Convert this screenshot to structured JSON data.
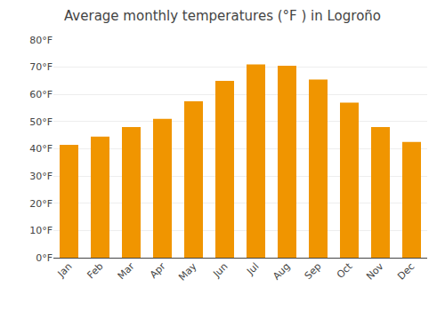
{
  "chart_data": {
    "type": "bar",
    "title": "Average monthly temperatures (°F ) in Logroño",
    "categories": [
      "Jan",
      "Feb",
      "Mar",
      "Apr",
      "May",
      "Jun",
      "Jul",
      "Aug",
      "Sep",
      "Oct",
      "Nov",
      "Dec"
    ],
    "values": [
      41.5,
      44.5,
      48.0,
      51.0,
      57.5,
      65.0,
      71.0,
      70.5,
      65.5,
      57.0,
      48.0,
      42.5
    ],
    "color": "#F09500",
    "ylim": [
      0,
      80
    ],
    "yticks": [
      {
        "value": 0,
        "label": "0°F"
      },
      {
        "value": 10,
        "label": "10°F"
      },
      {
        "value": 20,
        "label": "20°F"
      },
      {
        "value": 30,
        "label": "30°F"
      },
      {
        "value": 40,
        "label": "40°F"
      },
      {
        "value": 50,
        "label": "50°F"
      },
      {
        "value": 60,
        "label": "60°F"
      },
      {
        "value": 70,
        "label": "70°F"
      },
      {
        "value": 80,
        "label": "80°F"
      }
    ],
    "grid": true
  }
}
